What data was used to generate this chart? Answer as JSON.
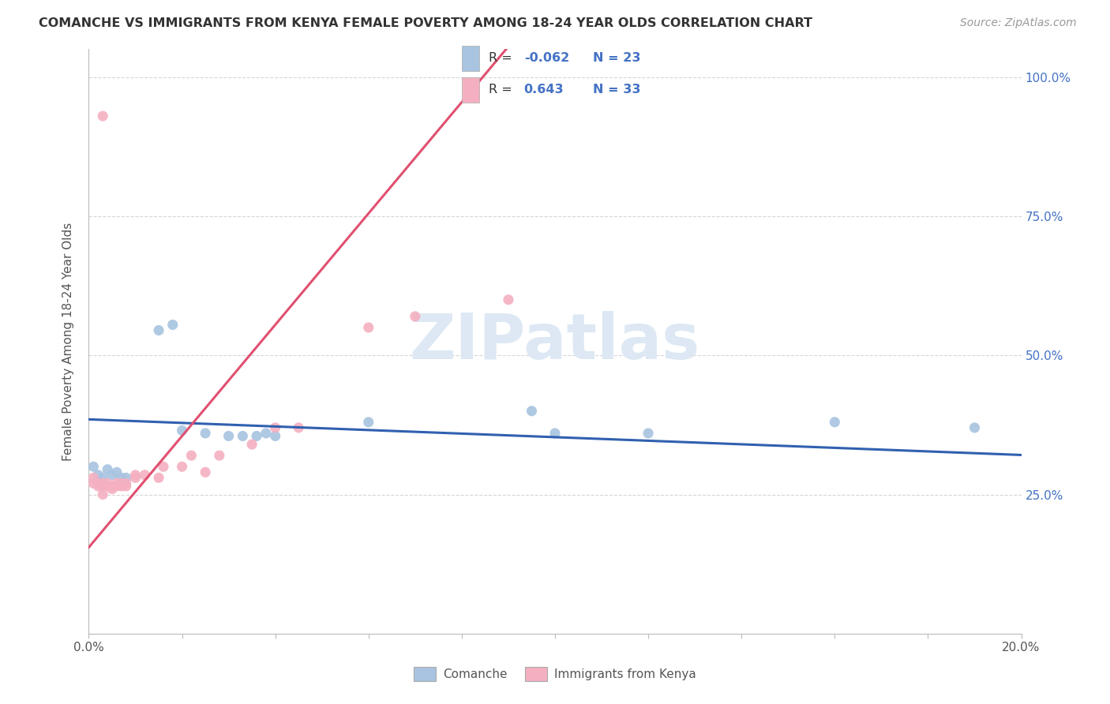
{
  "title": "COMANCHE VS IMMIGRANTS FROM KENYA FEMALE POVERTY AMONG 18-24 YEAR OLDS CORRELATION CHART",
  "source": "Source: ZipAtlas.com",
  "ylabel": "Female Poverty Among 18-24 Year Olds",
  "xlim": [
    0.0,
    0.2
  ],
  "ylim": [
    0.0,
    1.05
  ],
  "xticks": [
    0.0,
    0.02,
    0.04,
    0.06,
    0.08,
    0.1,
    0.12,
    0.14,
    0.16,
    0.18,
    0.2
  ],
  "xticklabels": [
    "0.0%",
    "",
    "",
    "",
    "",
    "",
    "",
    "",
    "",
    "",
    "20.0%"
  ],
  "yticks": [
    0.0,
    0.25,
    0.5,
    0.75,
    1.0
  ],
  "yticklabels": [
    "",
    "25.0%",
    "50.0%",
    "75.0%",
    "100.0%"
  ],
  "color_comanche": "#a8c4e0",
  "color_kenya": "#f4b0c0",
  "color_line_comanche": "#3060b0",
  "color_line_kenya": "#e05070",
  "background_color": "#ffffff",
  "grid_color": "#cccccc",
  "comanche_x": [
    0.001,
    0.002,
    0.003,
    0.004,
    0.005,
    0.006,
    0.007,
    0.008,
    0.015,
    0.018,
    0.02,
    0.025,
    0.03,
    0.033,
    0.036,
    0.038,
    0.04,
    0.06,
    0.095,
    0.1,
    0.12,
    0.16,
    0.19
  ],
  "comanche_y": [
    0.3,
    0.285,
    0.28,
    0.295,
    0.285,
    0.29,
    0.28,
    0.28,
    0.545,
    0.555,
    0.365,
    0.36,
    0.355,
    0.355,
    0.355,
    0.36,
    0.355,
    0.38,
    0.4,
    0.36,
    0.36,
    0.38,
    0.37
  ],
  "kenya_x": [
    0.001,
    0.001,
    0.002,
    0.002,
    0.003,
    0.003,
    0.003,
    0.004,
    0.004,
    0.005,
    0.005,
    0.006,
    0.006,
    0.007,
    0.007,
    0.008,
    0.008,
    0.01,
    0.01,
    0.012,
    0.015,
    0.016,
    0.02,
    0.022,
    0.025,
    0.028,
    0.035,
    0.04,
    0.045,
    0.06,
    0.07,
    0.09,
    0.003
  ],
  "kenya_y": [
    0.28,
    0.27,
    0.27,
    0.265,
    0.265,
    0.27,
    0.25,
    0.27,
    0.265,
    0.26,
    0.265,
    0.27,
    0.265,
    0.265,
    0.27,
    0.27,
    0.265,
    0.28,
    0.285,
    0.285,
    0.28,
    0.3,
    0.3,
    0.32,
    0.29,
    0.32,
    0.34,
    0.37,
    0.37,
    0.55,
    0.57,
    0.6,
    0.93
  ],
  "watermark_text": "ZIPatlas",
  "legend_r1": "-0.062",
  "legend_n1": "23",
  "legend_r2": "0.643",
  "legend_n2": "33"
}
